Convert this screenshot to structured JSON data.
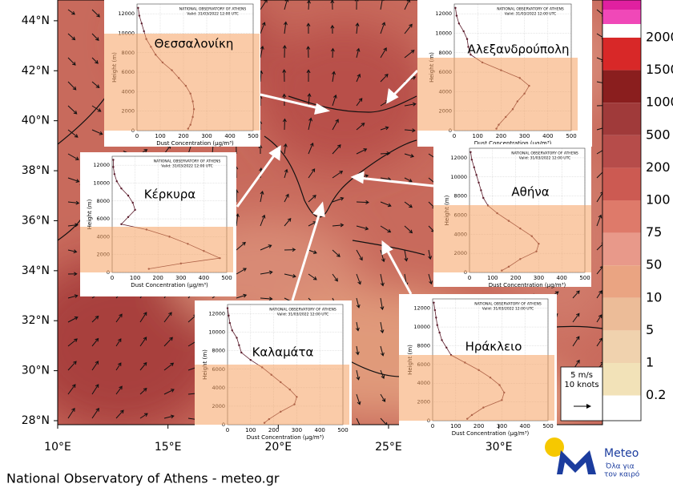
{
  "map": {
    "lat_lim": [
      27.84,
      44.83
    ],
    "lon_lim": [
      10,
      34.7
    ],
    "lat_ticks": [
      {
        "value": 44,
        "label": "44°N"
      },
      {
        "value": 42,
        "label": "42°N"
      },
      {
        "value": 40,
        "label": "40°N"
      },
      {
        "value": 38,
        "label": "38°N"
      },
      {
        "value": 36,
        "label": "36°N"
      },
      {
        "value": 34,
        "label": "34°N"
      },
      {
        "value": 32,
        "label": "32°N"
      },
      {
        "value": 30,
        "label": "30°N"
      },
      {
        "value": 28,
        "label": "28°N"
      }
    ],
    "lon_ticks": [
      {
        "value": 10,
        "label": "10°E"
      },
      {
        "value": 15,
        "label": "15°E"
      },
      {
        "value": 20,
        "label": "20°E"
      },
      {
        "value": 25,
        "label": "25°E"
      },
      {
        "value": 30,
        "label": "30°E"
      }
    ]
  },
  "colorbar": {
    "labels": [
      "2000",
      "1500",
      "1000",
      "500",
      "200",
      "100",
      "75",
      "50",
      "10",
      "5",
      "1",
      "0.2"
    ]
  },
  "wind_legend": {
    "speed": "5 m/s",
    "knots": "10 knots"
  },
  "footer": "National Observatory of Athens - meteo.gr",
  "logo": {
    "name": "Meteo",
    "slogan_1": "Όλα για",
    "slogan_2": "τον καιρό"
  },
  "chart_data": [
    {
      "type": "line",
      "title": "Θεσσαλονίκη",
      "header": "NATIONAL OBSERVATORY OF ATHENS",
      "valid": "Valid: 31/03/2022 12:00 UTC",
      "x_label": "Dust Concentration (μg/m³)",
      "y_label": "Height (m)",
      "heights": [
        12600,
        11800,
        11000,
        10200,
        9400,
        8600,
        7800,
        7000,
        6200,
        5400,
        4600,
        3800,
        3000,
        2200,
        1400,
        600,
        200
      ],
      "values": [
        5,
        10,
        20,
        30,
        40,
        60,
        80,
        110,
        150,
        180,
        210,
        230,
        240,
        245,
        240,
        230,
        220
      ],
      "xlim": [
        0,
        500
      ],
      "ylim": [
        0,
        13000
      ],
      "xticks": [
        0,
        100,
        200,
        300,
        400,
        500
      ],
      "yticks": [
        0,
        2000,
        4000,
        6000,
        8000,
        10000,
        12000
      ],
      "color": "#5a1a2a"
    },
    {
      "type": "line",
      "title": "Αλεξανδρούπολη",
      "header": "NATIONAL OBSERVATORY OF ATHENS",
      "valid": "Valid: 31/03/2022 12:00 UTC",
      "x_label": "Dust Concentration (μg/m³)",
      "y_label": "Height (m)",
      "heights": [
        12600,
        11800,
        11000,
        10200,
        9400,
        8600,
        7800,
        7000,
        6200,
        5400,
        4600,
        3800,
        3000,
        2200,
        1400,
        600,
        200
      ],
      "values": [
        5,
        10,
        20,
        40,
        55,
        60,
        70,
        120,
        200,
        280,
        320,
        300,
        270,
        250,
        220,
        190,
        180
      ],
      "xlim": [
        0,
        500
      ],
      "ylim": [
        0,
        13000
      ],
      "xticks": [
        0,
        100,
        200,
        300,
        400,
        500
      ],
      "yticks": [
        0,
        2000,
        4000,
        6000,
        8000,
        10000,
        12000
      ],
      "color": "#5a1a2a"
    },
    {
      "type": "line",
      "title": "Κέρκυρα",
      "header": "NATIONAL OBSERVATORY OF ATHENS",
      "valid": "Valid: 31/03/2022 12:00 UTC",
      "x_label": "Dust Concentration (μg/m³)",
      "y_label": "Height (m)",
      "heights": [
        12600,
        11800,
        11000,
        10200,
        9400,
        8600,
        7800,
        7000,
        6200,
        5400,
        4800,
        4000,
        3200,
        2400,
        1600,
        1000,
        400
      ],
      "values": [
        5,
        5,
        10,
        20,
        40,
        70,
        90,
        100,
        70,
        40,
        150,
        250,
        330,
        400,
        470,
        300,
        160
      ],
      "xlim": [
        0,
        500
      ],
      "ylim": [
        0,
        13000
      ],
      "xticks": [
        0,
        100,
        200,
        300,
        400,
        500
      ],
      "yticks": [
        0,
        2000,
        4000,
        6000,
        8000,
        10000,
        12000
      ],
      "color": "#5a1a2a"
    },
    {
      "type": "line",
      "title": "Αθήνα",
      "header": "NATIONAL OBSERVATORY OF ATHENS",
      "valid": "Valid: 31/03/2022 12:00 UTC",
      "x_label": "Dust Concentration (μg/m³)",
      "y_label": "Height (m)",
      "heights": [
        12600,
        11800,
        11000,
        10200,
        9400,
        8600,
        7800,
        7000,
        6200,
        5400,
        4600,
        3800,
        3000,
        2200,
        1400,
        600,
        200
      ],
      "values": [
        5,
        10,
        20,
        30,
        40,
        50,
        60,
        80,
        120,
        170,
        220,
        270,
        300,
        290,
        220,
        170,
        140
      ],
      "xlim": [
        0,
        500
      ],
      "ylim": [
        0,
        13000
      ],
      "xticks": [
        0,
        100,
        200,
        300,
        400,
        500
      ],
      "yticks": [
        0,
        2000,
        4000,
        6000,
        8000,
        10000,
        12000
      ],
      "color": "#5a1a2a"
    },
    {
      "type": "line",
      "title": "Καλαμάτα",
      "header": "NATIONAL OBSERVATORY OF ATHENS",
      "valid": "Valid: 31/03/2022 12:00 UTC",
      "x_label": "Dust Concentration (μg/m³)",
      "y_label": "Height (m)",
      "heights": [
        12600,
        11800,
        11000,
        10200,
        9400,
        8600,
        7800,
        7000,
        6200,
        5400,
        4600,
        3800,
        3000,
        2200,
        1400,
        600,
        200
      ],
      "values": [
        0,
        5,
        10,
        20,
        40,
        50,
        60,
        100,
        150,
        190,
        230,
        270,
        300,
        290,
        230,
        180,
        160
      ],
      "xlim": [
        0,
        500
      ],
      "ylim": [
        0,
        13000
      ],
      "xticks": [
        0,
        100,
        200,
        300,
        400,
        500
      ],
      "yticks": [
        0,
        2000,
        4000,
        6000,
        8000,
        10000,
        12000
      ],
      "color": "#5a1a2a"
    },
    {
      "type": "line",
      "title": "Ηράκλειο",
      "header": "NATIONAL OBSERVATORY OF ATHENS",
      "valid": "Valid: 31/03/2022 12:00 UTC",
      "x_label": "Dust Concentration (μg/m³)",
      "y_label": "Height (m)",
      "heights": [
        12600,
        11800,
        11000,
        10200,
        9400,
        8600,
        7800,
        7000,
        6200,
        5400,
        4600,
        3800,
        3000,
        2200,
        1400,
        600,
        200
      ],
      "values": [
        5,
        10,
        15,
        20,
        30,
        40,
        60,
        80,
        140,
        200,
        250,
        290,
        310,
        300,
        220,
        170,
        150
      ],
      "xlim": [
        0,
        500
      ],
      "ylim": [
        0,
        13000
      ],
      "xticks": [
        0,
        100,
        200,
        300,
        400,
        500
      ],
      "yticks": [
        0,
        2000,
        4000,
        6000,
        8000,
        10000,
        12000
      ],
      "color": "#5a1a2a"
    }
  ]
}
